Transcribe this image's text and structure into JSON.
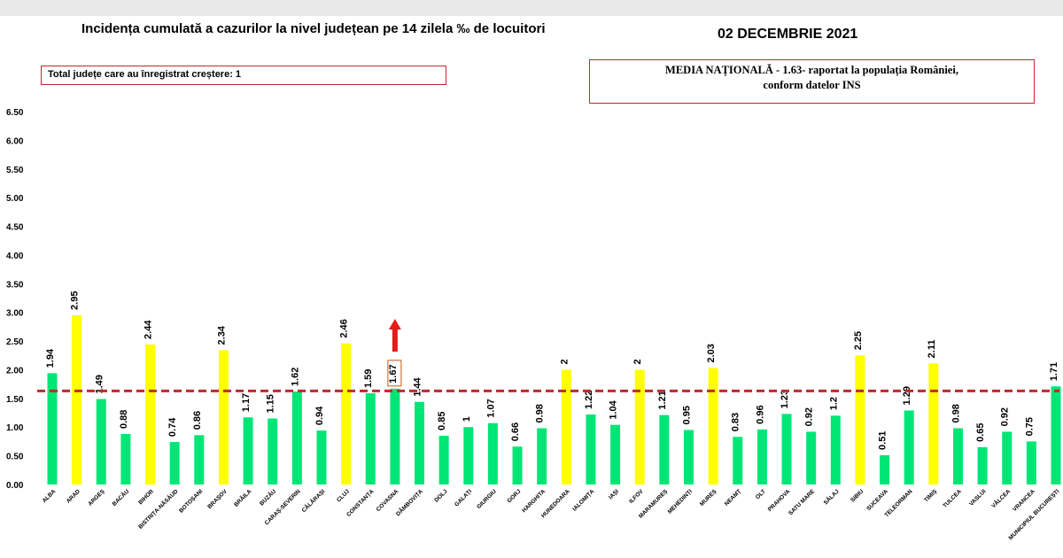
{
  "header": {
    "title": "Incidența cumulată a cazurilor la nivel județean pe 14 zilela ‰ de locuitori",
    "date": "02 DECEMBRIE 2021",
    "increase_note": "Total județe care au înregistrat creștere: 1",
    "national_line1": "MEDIA NAȚIONALĂ   - 1.63-  raportat la populația României,",
    "national_line2": "conform datelor INS"
  },
  "chart_data": {
    "type": "bar",
    "title": "Incidența cumulată a cazurilor la nivel județean pe 14 zilela ‰ de locuitori",
    "xlabel": "",
    "ylabel": "",
    "ylim": [
      0,
      6.5
    ],
    "yticks": [
      "0.00",
      "0.50",
      "1.00",
      "1.50",
      "2.00",
      "2.50",
      "3.00",
      "3.50",
      "4.00",
      "4.50",
      "5.00",
      "5.50",
      "6.00",
      "6.50"
    ],
    "reference_line": {
      "value": 1.63,
      "color": "#c0282d",
      "style": "dashed"
    },
    "colors": {
      "above_average": "#ffff00",
      "below_average": "#00e676",
      "reference": "#c0282d",
      "increase_arrow": "#e31b1b"
    },
    "grid": false,
    "categories": [
      "ALBA",
      "ARAD",
      "ARGEȘ",
      "BACĂU",
      "BIHOR",
      "BISTRIȚA-NĂSĂUD",
      "BOTOȘANI",
      "BRAȘOV",
      "BRĂILA",
      "BUZĂU",
      "CARAȘ-SEVERIN",
      "CĂLĂRAȘI",
      "CLUJ",
      "CONSTANȚA",
      "COVASNA",
      "DÂMBOVIȚA",
      "DOLJ",
      "GALAȚI",
      "GIURGIU",
      "GORJ",
      "HARGHITA",
      "HUNEDOARA",
      "IALOMIȚA",
      "IAȘI",
      "ILFOV",
      "MARAMUREȘ",
      "MEHEDINȚI",
      "MUREȘ",
      "NEAMȚ",
      "OLT",
      "PRAHOVA",
      "SATU MARE",
      "SĂLAJ",
      "SIBIU",
      "SUCEAVA",
      "TELEORMAN",
      "TIMIȘ",
      "TULCEA",
      "VASLUI",
      "VÂLCEA",
      "VRANCEA",
      "MUNICIPIUL BUCUREȘTI"
    ],
    "values": [
      1.94,
      2.95,
      1.49,
      0.88,
      2.44,
      0.74,
      0.86,
      2.34,
      1.17,
      1.15,
      1.62,
      0.94,
      2.46,
      1.59,
      1.67,
      1.44,
      0.85,
      1,
      1.07,
      0.66,
      0.98,
      2,
      1.22,
      1.04,
      2,
      1.21,
      0.95,
      2.03,
      0.83,
      0.96,
      1.23,
      0.92,
      1.2,
      2.25,
      0.51,
      1.29,
      2.11,
      0.98,
      0.65,
      0.92,
      0.75,
      1.71
    ],
    "labels": [
      "1.94",
      "2.95",
      "1.49",
      "0.88",
      "2.44",
      "0.74",
      "0.86",
      "2.34",
      "1.17",
      "1.15",
      "1.62",
      "0.94",
      "2.46",
      "1.59",
      "1.67",
      "1.44",
      "0.85",
      "1",
      "1.07",
      "0.66",
      "0.98",
      "2",
      "1.22",
      "1.04",
      "2",
      "1.21",
      "0.95",
      "2.03",
      "0.83",
      "0.96",
      "1.23",
      "0.92",
      "1.2",
      "2.25",
      "0.51",
      "1.29",
      "2.11",
      "0.98",
      "0.65",
      "0.92",
      "0.75",
      "1.71"
    ],
    "bar_colors": [
      "green",
      "yellow",
      "green",
      "green",
      "yellow",
      "green",
      "green",
      "yellow",
      "green",
      "green",
      "green",
      "green",
      "yellow",
      "green",
      "green",
      "green",
      "green",
      "green",
      "green",
      "green",
      "green",
      "yellow",
      "green",
      "green",
      "yellow",
      "green",
      "green",
      "yellow",
      "green",
      "green",
      "green",
      "green",
      "green",
      "yellow",
      "green",
      "green",
      "yellow",
      "green",
      "green",
      "green",
      "green",
      "green"
    ],
    "increase_marker": {
      "category": "COVASNA",
      "icon": "up-arrow-icon"
    }
  }
}
